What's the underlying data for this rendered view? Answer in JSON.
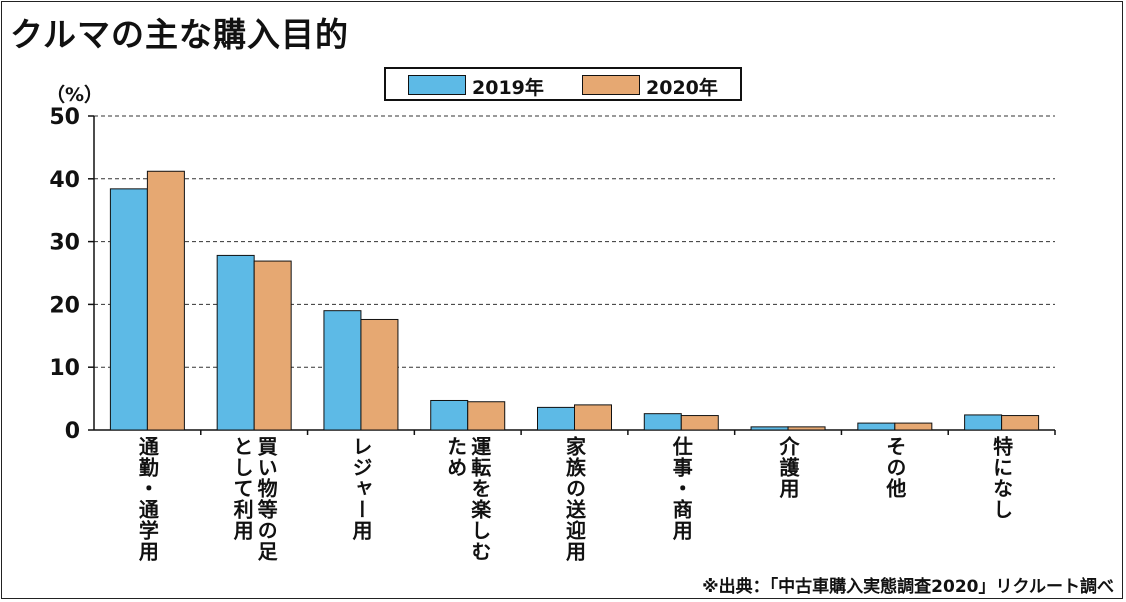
{
  "title": "クルマの主な購入目的",
  "y_unit": "（%）",
  "source_note": "※出典：「中古車購入実態調査2020」リクルート調べ",
  "colors": {
    "series_2019": "#5DBAE6",
    "series_2020": "#E6A872",
    "gridline": "#333333"
  },
  "chart_data": {
    "type": "bar",
    "title": "クルマの主な購入目的",
    "ylabel": "（%）",
    "xlabel": "",
    "ylim": [
      0,
      50
    ],
    "yticks": [
      0,
      10,
      20,
      30,
      40,
      50
    ],
    "grid": "dashed horizontal",
    "legend": "top-center",
    "categories": [
      "通勤・通学用",
      "買い物等の足\nとして利用",
      "レジャー用",
      "運転を楽しむ\nため",
      "家族の送迎用",
      "仕事・商用",
      "介護用",
      "その他",
      "特になし"
    ],
    "series": [
      {
        "name": "2019年",
        "values": [
          38.4,
          27.8,
          19.0,
          4.7,
          3.6,
          2.6,
          0.5,
          1.1,
          2.4
        ]
      },
      {
        "name": "2020年",
        "values": [
          41.2,
          26.9,
          17.6,
          4.5,
          4.0,
          2.3,
          0.5,
          1.1,
          2.3
        ]
      }
    ]
  }
}
